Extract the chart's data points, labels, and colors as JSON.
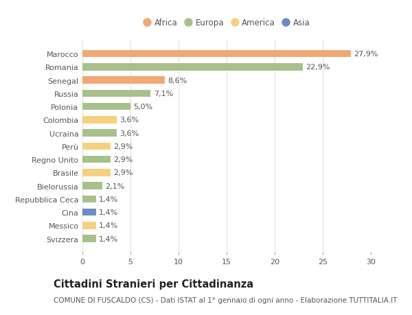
{
  "title": "Cittadini Stranieri per Cittadinanza",
  "subtitle": "COMUNE DI FUSCALDO (CS) - Dati ISTAT al 1° gennaio di ogni anno - Elaborazione TUTTITALIA.IT",
  "categories": [
    "Marocco",
    "Romania",
    "Senegal",
    "Russia",
    "Polonia",
    "Colombia",
    "Ucraina",
    "Perù",
    "Regno Unito",
    "Brasile",
    "Bielorussia",
    "Repubblica Ceca",
    "Cina",
    "Messico",
    "Svizzera"
  ],
  "values": [
    27.9,
    22.9,
    8.6,
    7.1,
    5.0,
    3.6,
    3.6,
    2.9,
    2.9,
    2.9,
    2.1,
    1.4,
    1.4,
    1.4,
    1.4
  ],
  "colors": [
    "#F0A875",
    "#A8C08A",
    "#F0A875",
    "#A8C08A",
    "#A8C08A",
    "#F5D080",
    "#A8C08A",
    "#F5D080",
    "#A8C08A",
    "#F5D080",
    "#A8C08A",
    "#A8C08A",
    "#6B8CC7",
    "#F5D080",
    "#A8C08A"
  ],
  "labels": [
    "27,9%",
    "22,9%",
    "8,6%",
    "7,1%",
    "5,0%",
    "3,6%",
    "3,6%",
    "2,9%",
    "2,9%",
    "2,9%",
    "2,1%",
    "1,4%",
    "1,4%",
    "1,4%",
    "1,4%"
  ],
  "legend": [
    {
      "label": "Africa",
      "color": "#F0A875"
    },
    {
      "label": "Europa",
      "color": "#A8C08A"
    },
    {
      "label": "America",
      "color": "#F5D080"
    },
    {
      "label": "Asia",
      "color": "#6B8CC7"
    }
  ],
  "xlim": [
    0,
    30
  ],
  "xticks": [
    0,
    5,
    10,
    15,
    20,
    25,
    30
  ],
  "background_color": "#ffffff",
  "plot_bg_color": "#ffffff",
  "bar_height": 0.55,
  "title_fontsize": 10.5,
  "subtitle_fontsize": 7.5,
  "label_fontsize": 8,
  "tick_fontsize": 8,
  "legend_fontsize": 8.5
}
